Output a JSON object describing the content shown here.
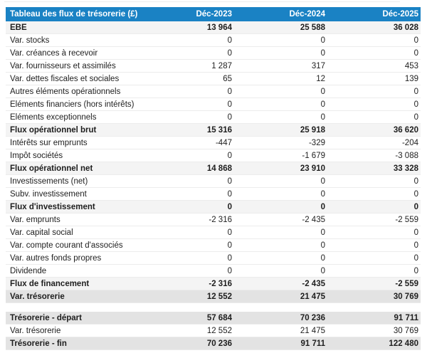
{
  "chart_data": {
    "type": "table",
    "title": "Tableau des flux de trésorerie (£)",
    "columns": [
      "Déc-2023",
      "Déc-2024",
      "Déc-2025"
    ],
    "rows": [
      {
        "label": "EBE",
        "values": [
          "13 964",
          "25 588",
          "36 028"
        ],
        "style": "subtotal"
      },
      {
        "label": "Var. stocks",
        "values": [
          "0",
          "0",
          "0"
        ],
        "style": "normal"
      },
      {
        "label": "Var. créances à recevoir",
        "values": [
          "0",
          "0",
          "0"
        ],
        "style": "normal"
      },
      {
        "label": "Var. fournisseurs et assimilés",
        "values": [
          "1 287",
          "317",
          "453"
        ],
        "style": "normal"
      },
      {
        "label": "Var. dettes fiscales et sociales",
        "values": [
          "65",
          "12",
          "139"
        ],
        "style": "normal"
      },
      {
        "label": "Autres éléments opérationnels",
        "values": [
          "0",
          "0",
          "0"
        ],
        "style": "normal"
      },
      {
        "label": "Eléments financiers (hors intérêts)",
        "values": [
          "0",
          "0",
          "0"
        ],
        "style": "normal"
      },
      {
        "label": "Eléments exceptionnels",
        "values": [
          "0",
          "0",
          "0"
        ],
        "style": "normal"
      },
      {
        "label": "Flux opérationnel brut",
        "values": [
          "15 316",
          "25 918",
          "36 620"
        ],
        "style": "subtotal"
      },
      {
        "label": "Intérêts sur emprunts",
        "values": [
          "-447",
          "-329",
          "-204"
        ],
        "style": "normal"
      },
      {
        "label": "Impôt sociétés",
        "values": [
          "0",
          "-1 679",
          "-3 088"
        ],
        "style": "normal"
      },
      {
        "label": "Flux opérationnel net",
        "values": [
          "14 868",
          "23 910",
          "33 328"
        ],
        "style": "subtotal"
      },
      {
        "label": "Investissements (net)",
        "values": [
          "0",
          "0",
          "0"
        ],
        "style": "normal"
      },
      {
        "label": "Subv. investissement",
        "values": [
          "0",
          "0",
          "0"
        ],
        "style": "normal"
      },
      {
        "label": "Flux d'investissement",
        "values": [
          "0",
          "0",
          "0"
        ],
        "style": "subtotal"
      },
      {
        "label": "Var. emprunts",
        "values": [
          "-2 316",
          "-2 435",
          "-2 559"
        ],
        "style": "normal"
      },
      {
        "label": "Var. capital social",
        "values": [
          "0",
          "0",
          "0"
        ],
        "style": "normal"
      },
      {
        "label": "Var. compte courant d'associés",
        "values": [
          "0",
          "0",
          "0"
        ],
        "style": "normal"
      },
      {
        "label": "Var. autres fonds propres",
        "values": [
          "0",
          "0",
          "0"
        ],
        "style": "normal"
      },
      {
        "label": "Dividende",
        "values": [
          "0",
          "0",
          "0"
        ],
        "style": "normal"
      },
      {
        "label": "Flux de financement",
        "values": [
          "-2 316",
          "-2 435",
          "-2 559"
        ],
        "style": "subtotal"
      },
      {
        "label": "Var. trésorerie",
        "values": [
          "12 552",
          "21 475",
          "30 769"
        ],
        "style": "total"
      }
    ],
    "summary_rows": [
      {
        "label": "Trésorerie - départ",
        "values": [
          "57 684",
          "70 236",
          "91 711"
        ],
        "style": "total"
      },
      {
        "label": "Var. trésorerie",
        "values": [
          "12 552",
          "21 475",
          "30 769"
        ],
        "style": "normal"
      },
      {
        "label": "Trésorerie - fin",
        "values": [
          "70 236",
          "91 711",
          "122 480"
        ],
        "style": "total"
      }
    ],
    "layout": {
      "legend": "none",
      "grid": "horizontal-row-borders",
      "value_alignment": "right"
    }
  },
  "colors": {
    "header_bg": "#1a82c4",
    "header_text": "#ffffff",
    "subtotal_row_bg": "#f4f4f4",
    "total_row_bg": "#e3e3e3",
    "row_border": "#ececec",
    "text": "#1e1e1e",
    "page_bg": "#ffffff"
  }
}
